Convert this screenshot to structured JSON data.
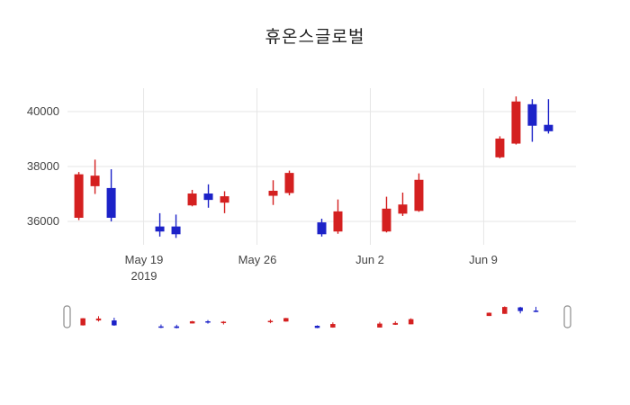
{
  "title": "휴온스글로벌",
  "colors": {
    "up": "#d42020",
    "down": "#1c22c8",
    "grid": "#e6e6e6",
    "axis_text": "#444444",
    "title_text": "#1f1f1f",
    "background": "#ffffff",
    "slider_handle_fill": "#ffffff",
    "slider_handle_border": "#8c8c8c"
  },
  "chart_data": {
    "type": "candlestick",
    "title": "휴온스글로벌",
    "legend": "none",
    "grid": "on",
    "rangeslider": true,
    "y_axis": {
      "range": [
        35150,
        40850
      ],
      "ticks": [
        {
          "value": 40000,
          "label": "40000"
        },
        {
          "value": 38000,
          "label": "38000"
        },
        {
          "value": 36000,
          "label": "36000"
        }
      ]
    },
    "x_axis": {
      "range_days": [
        0.3,
        31.7
      ],
      "ticks": [
        {
          "offset": 5,
          "label": "May 19",
          "sublabel": "2019"
        },
        {
          "offset": 12,
          "label": "May 26"
        },
        {
          "offset": 19,
          "label": "Jun 2"
        },
        {
          "offset": 26,
          "label": "Jun 9"
        }
      ]
    },
    "candles": [
      {
        "date": "May 15",
        "offset": 1,
        "open": 36150,
        "high": 37800,
        "low": 36050,
        "close": 37700
      },
      {
        "date": "May 16",
        "offset": 2,
        "open": 37300,
        "high": 38250,
        "low": 37000,
        "close": 37650
      },
      {
        "date": "May 17",
        "offset": 3,
        "open": 37200,
        "high": 37900,
        "low": 36000,
        "close": 36150
      },
      {
        "date": "May 20",
        "offset": 6,
        "open": 35800,
        "high": 36300,
        "low": 35450,
        "close": 35650
      },
      {
        "date": "May 21",
        "offset": 7,
        "open": 35800,
        "high": 36250,
        "low": 35400,
        "close": 35550
      },
      {
        "date": "May 22",
        "offset": 8,
        "open": 36600,
        "high": 37150,
        "low": 36550,
        "close": 37000
      },
      {
        "date": "May 23",
        "offset": 9,
        "open": 37000,
        "high": 37350,
        "low": 36500,
        "close": 36800
      },
      {
        "date": "May 24",
        "offset": 10,
        "open": 36700,
        "high": 37100,
        "low": 36300,
        "close": 36900
      },
      {
        "date": "May 27",
        "offset": 13,
        "open": 36950,
        "high": 37500,
        "low": 36600,
        "close": 37100
      },
      {
        "date": "May 28",
        "offset": 14,
        "open": 37050,
        "high": 37850,
        "low": 36950,
        "close": 37750
      },
      {
        "date": "May 30",
        "offset": 16,
        "open": 35950,
        "high": 36100,
        "low": 35450,
        "close": 35550
      },
      {
        "date": "May 31",
        "offset": 17,
        "open": 35650,
        "high": 36800,
        "low": 35550,
        "close": 36350
      },
      {
        "date": "Jun 3",
        "offset": 20,
        "open": 35650,
        "high": 36900,
        "low": 35600,
        "close": 36450
      },
      {
        "date": "Jun 4",
        "offset": 21,
        "open": 36300,
        "high": 37050,
        "low": 36200,
        "close": 36600
      },
      {
        "date": "Jun 5",
        "offset": 22,
        "open": 36400,
        "high": 37750,
        "low": 36350,
        "close": 37500
      },
      {
        "date": "Jun 10",
        "offset": 27,
        "open": 38350,
        "high": 39100,
        "low": 38300,
        "close": 39000
      },
      {
        "date": "Jun 11",
        "offset": 28,
        "open": 38850,
        "high": 40550,
        "low": 38800,
        "close": 40350
      },
      {
        "date": "Jun 12",
        "offset": 29,
        "open": 40250,
        "high": 40450,
        "low": 38900,
        "close": 39500
      },
      {
        "date": "Jun 13",
        "offset": 30,
        "open": 39500,
        "high": 40450,
        "low": 39200,
        "close": 39300
      }
    ]
  }
}
